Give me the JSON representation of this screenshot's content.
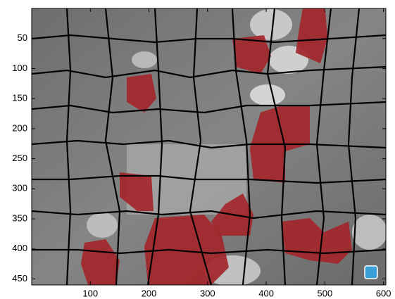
{
  "chart_data": {
    "type": "image",
    "xlim": [
      0,
      604
    ],
    "ylim": [
      0,
      460
    ],
    "y_reversed": true,
    "xticks": [
      100,
      200,
      300,
      400,
      500,
      600
    ],
    "yticks": [
      50,
      100,
      150,
      200,
      250,
      300,
      350,
      400,
      450
    ]
  }
}
